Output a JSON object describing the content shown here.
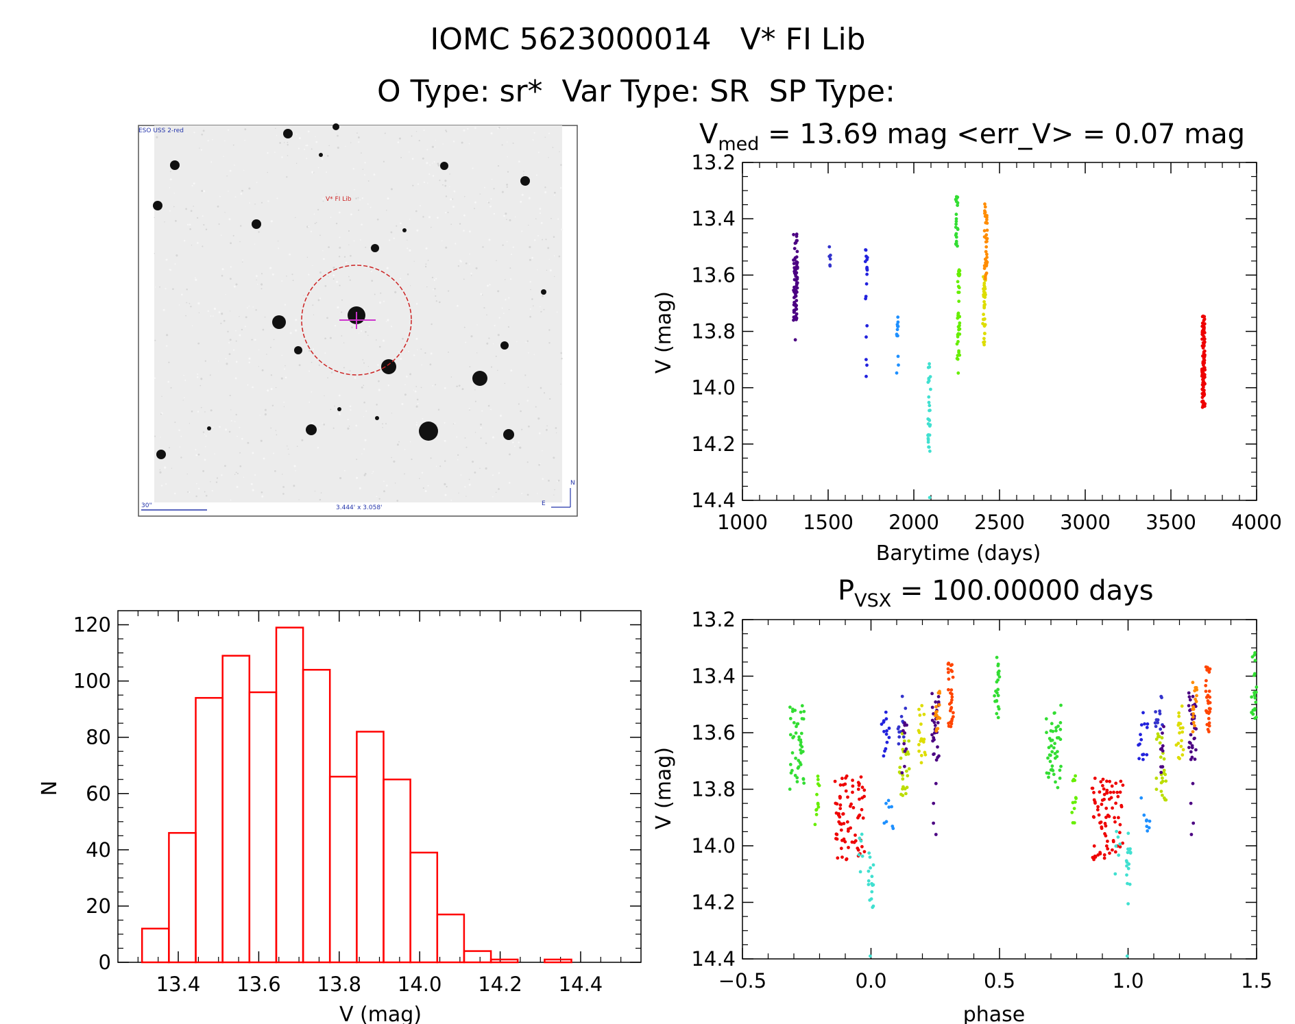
{
  "header": {
    "object_line": "IOMC 5623000014   V* FI Lib",
    "type_line": "O Type: sr*  Var Type: SR  SP Type:"
  },
  "finder": {
    "survey_label": "ESO USS 2-red",
    "target_label": "V* FI Lib",
    "scale_label": "30\"",
    "fov_label": "3.444' x 3.058'",
    "north_label": "N",
    "east_label": "E"
  },
  "colors": {
    "hist": "#ff0000",
    "circle": "#cc2222",
    "cross": "#cc33cc",
    "annot": "#2233aa"
  },
  "chart_data": [
    {
      "id": "lightcurve",
      "type": "scatter",
      "title_prefix": "V",
      "title_sub": "med",
      "title_suffix": " = 13.69 mag <err_V> = 0.07 mag",
      "xlabel": "Barytime (days)",
      "ylabel": "V (mag)",
      "xlim": [
        1000,
        4000
      ],
      "ylim": [
        13.2,
        14.4
      ],
      "y_inverted": true,
      "xticks": [
        "1000",
        "1500",
        "2000",
        "2500",
        "3000",
        "3500",
        "4000"
      ],
      "yticks": [
        "13.2",
        "13.4",
        "13.6",
        "13.8",
        "14.0",
        "14.2",
        "14.4"
      ],
      "groups": [
        {
          "x": 1310,
          "spread": 12,
          "ymin": 13.45,
          "ymax": 13.76,
          "n": 70,
          "color": "#4b0082",
          "outliers": [
            13.83
          ]
        },
        {
          "x": 1510,
          "spread": 4,
          "ymin": 13.48,
          "ymax": 13.62,
          "n": 6,
          "color": "#3333cc"
        },
        {
          "x": 1725,
          "spread": 8,
          "ymin": 13.51,
          "ymax": 13.7,
          "n": 14,
          "color": "#2222dd",
          "outliers": [
            13.78,
            13.82,
            13.9,
            13.92,
            13.96
          ]
        },
        {
          "x": 1905,
          "spread": 6,
          "ymin": 13.72,
          "ymax": 13.95,
          "n": 12,
          "color": "#1e90ff"
        },
        {
          "x": 2090,
          "spread": 8,
          "ymin": 13.86,
          "ymax": 14.23,
          "n": 30,
          "color": "#40e0d0",
          "outliers": [
            14.39
          ]
        },
        {
          "x": 2250,
          "spread": 8,
          "ymin": 13.31,
          "ymax": 13.52,
          "n": 22,
          "color": "#33dd33"
        },
        {
          "x": 2260,
          "spread": 8,
          "ymin": 13.58,
          "ymax": 13.95,
          "n": 40,
          "color": "#66ee00"
        },
        {
          "x": 2410,
          "spread": 8,
          "ymin": 13.6,
          "ymax": 13.85,
          "n": 35,
          "color": "#dddd00"
        },
        {
          "x": 2420,
          "spread": 8,
          "ymin": 13.34,
          "ymax": 13.62,
          "n": 40,
          "color": "#ff8c00"
        },
        {
          "x": 3690,
          "spread": 9,
          "ymin": 13.74,
          "ymax": 14.07,
          "n": 110,
          "color": "#ee0000"
        }
      ]
    },
    {
      "id": "histogram",
      "type": "bar",
      "xlabel": "V (mag)",
      "ylabel": "N",
      "xlim": [
        13.25,
        14.55
      ],
      "ylim": [
        0,
        125
      ],
      "bin_edges_start": 13.31,
      "bin_width": 0.0667,
      "values": [
        12,
        46,
        94,
        109,
        96,
        119,
        104,
        66,
        82,
        65,
        39,
        17,
        4,
        1,
        0,
        1
      ],
      "xticks": [
        "13.4",
        "13.6",
        "13.8",
        "14.0",
        "14.2",
        "14.4"
      ],
      "yticks": [
        "0",
        "20",
        "40",
        "60",
        "80",
        "100",
        "120"
      ]
    },
    {
      "id": "phased",
      "type": "scatter",
      "title_prefix": "P",
      "title_sub": "VSX",
      "title_suffix": " = 100.00000 days",
      "xlabel": "phase",
      "ylabel": "V (mag)",
      "xlim": [
        -0.5,
        1.5
      ],
      "ylim": [
        13.2,
        14.4
      ],
      "y_inverted": true,
      "xticks": [
        "−0.5",
        "0.0",
        "0.5",
        "1.0",
        "1.5"
      ],
      "yticks": [
        "13.2",
        "13.4",
        "13.6",
        "13.8",
        "14.0",
        "14.2",
        "14.4"
      ],
      "groups": [
        {
          "x": -0.29,
          "spread": 0.03,
          "ymin": 13.5,
          "ymax": 13.8,
          "n": 45,
          "color": "#33dd33"
        },
        {
          "x": -0.21,
          "spread": 0.01,
          "ymin": 13.73,
          "ymax": 13.93,
          "n": 12,
          "color": "#66ee00"
        },
        {
          "x": -0.08,
          "spread": 0.06,
          "ymin": 13.75,
          "ymax": 14.05,
          "n": 80,
          "color": "#ee0000"
        },
        {
          "x": -0.04,
          "spread": 0.01,
          "ymin": 13.93,
          "ymax": 14.11,
          "n": 6,
          "color": "#40e0d0"
        },
        {
          "x": 0.0,
          "spread": 0.01,
          "ymin": 13.95,
          "ymax": 14.23,
          "n": 16,
          "color": "#40e0d0",
          "outliers": [
            14.39
          ]
        },
        {
          "x": 0.06,
          "spread": 0.02,
          "ymin": 13.51,
          "ymax": 13.7,
          "n": 14,
          "color": "#2222dd"
        },
        {
          "x": 0.07,
          "spread": 0.02,
          "ymin": 13.82,
          "ymax": 13.95,
          "n": 8,
          "color": "#1e90ff"
        },
        {
          "x": 0.12,
          "spread": 0.015,
          "ymin": 13.47,
          "ymax": 13.64,
          "n": 12,
          "color": "#3333cc"
        },
        {
          "x": 0.13,
          "spread": 0.02,
          "ymin": 13.6,
          "ymax": 13.85,
          "n": 25,
          "color": "#bbdd00"
        },
        {
          "x": 0.13,
          "spread": 0.01,
          "ymin": 13.55,
          "ymax": 13.75,
          "n": 10,
          "color": "#4b0082"
        },
        {
          "x": 0.2,
          "spread": 0.015,
          "ymin": 13.5,
          "ymax": 13.72,
          "n": 18,
          "color": "#dddd00"
        },
        {
          "x": 0.25,
          "spread": 0.015,
          "ymin": 13.45,
          "ymax": 13.7,
          "n": 30,
          "color": "#4b0082",
          "outliers": [
            13.78,
            13.85,
            13.92,
            13.96
          ]
        },
        {
          "x": 0.26,
          "spread": 0.01,
          "ymin": 13.42,
          "ymax": 13.6,
          "n": 16,
          "color": "#ff8c00"
        },
        {
          "x": 0.31,
          "spread": 0.01,
          "ymin": 13.35,
          "ymax": 13.6,
          "n": 30,
          "color": "#ff4500"
        },
        {
          "x": 0.49,
          "spread": 0.01,
          "ymin": 13.31,
          "ymax": 13.55,
          "n": 22,
          "color": "#33dd33"
        }
      ]
    }
  ]
}
